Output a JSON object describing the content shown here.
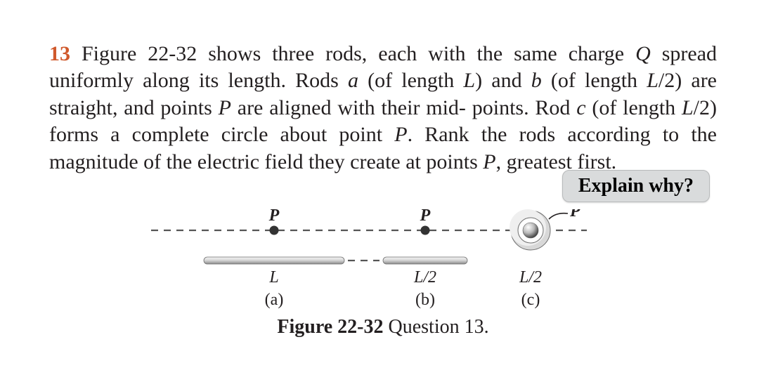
{
  "question": {
    "number": "13",
    "body_html": "Figure 22-32 shows three rods, each with the same charge <i>Q</i> spread uniformly along its length. Rods <i>a</i> (of length <i>L</i>) and <i>b</i> (of length <i>L</i>/2) are straight, and points <i>P</i> are aligned with their mid- points. Rod <i>c</i> (of length <i>L</i>/2) forms a complete circle about point <i>P</i>. Rank the rods according to the magnitude of the electric field they create at points <i>P</i>, greatest first."
  },
  "explain_button": "Explain why?",
  "figure": {
    "label_bold": "Figure 22-32",
    "label_rest": "  Question 13.",
    "P": "P",
    "lengths": {
      "a": "L",
      "b": "L/2",
      "c": "L/2"
    },
    "parts": {
      "a": "(a)",
      "b": "(b)",
      "c": "(c)"
    },
    "colors": {
      "text": "#231f20",
      "rod_edge": "#6f6f6f",
      "rod_fill_light": "#f2f2f2",
      "rod_fill_mid": "#cfcfcf",
      "rod_fill_dark": "#888888",
      "dash": "#555555",
      "point_fill": "#333333"
    }
  }
}
